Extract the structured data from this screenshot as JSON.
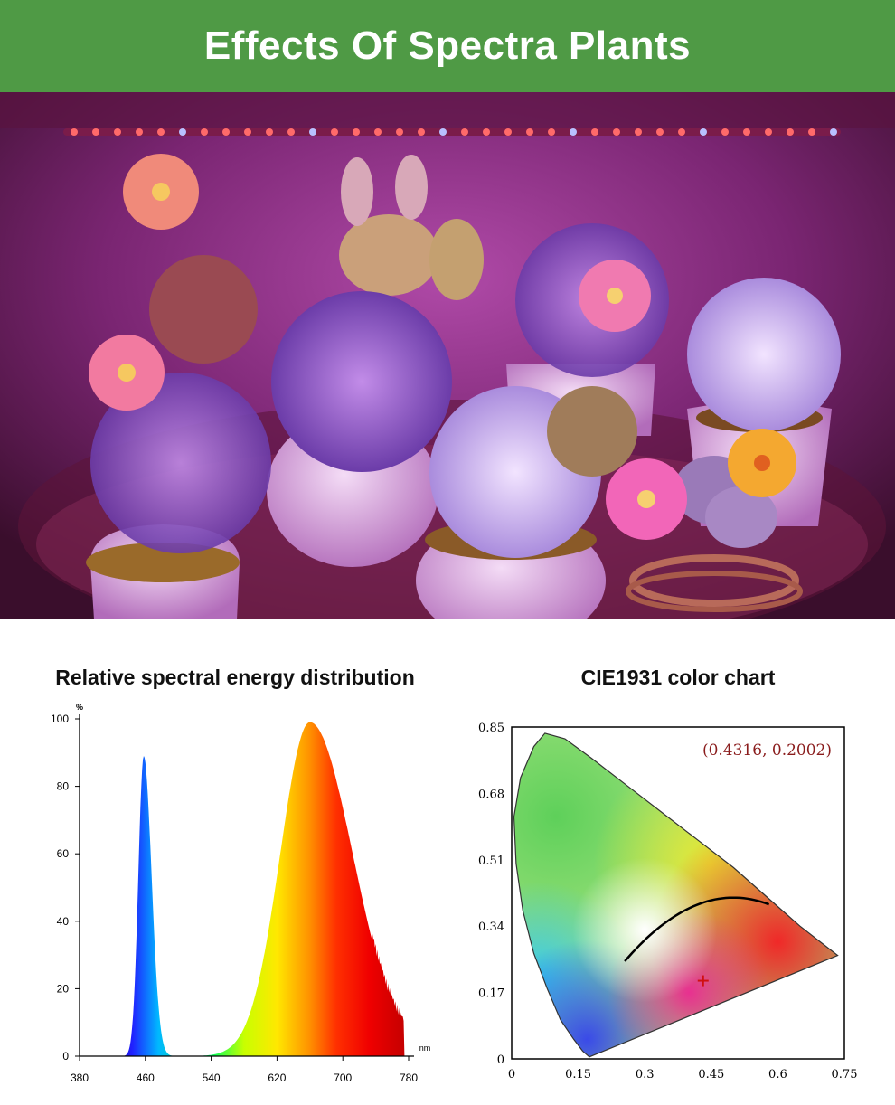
{
  "banner": {
    "title": "Effects Of Spectra Plants"
  },
  "colors": {
    "banner_bg": "#4f9a45",
    "banner_text": "#ffffff"
  },
  "photo": {
    "icon": "plant-photo"
  },
  "chart_data": [
    {
      "type": "area",
      "title": "Relative spectral energy distribution",
      "ylabel": "%",
      "xlabel": "nm",
      "xlim": [
        380,
        780
      ],
      "ylim": [
        0,
        100
      ],
      "x_ticks": [
        "380",
        "460",
        "540",
        "620",
        "700",
        "780"
      ],
      "y_ticks": [
        "0",
        "20",
        "40",
        "60",
        "80",
        "100"
      ],
      "grid": false,
      "series": [
        {
          "peak_nm": 458,
          "peak_value": 89
        },
        {
          "peak_nm": 660,
          "peak_value": 99
        }
      ]
    },
    {
      "type": "scatter",
      "title": "CIE1931 color chart",
      "xlim": [
        0,
        0.75
      ],
      "ylim": [
        0,
        0.85
      ],
      "x_ticks": [
        "0",
        "0.15",
        "0.3",
        "0.45",
        "0.6",
        "0.75"
      ],
      "y_ticks": [
        "0",
        "0.17",
        "0.34",
        "0.51",
        "0.68",
        "0.85"
      ],
      "annotation": "(0.4316, 0.2002)",
      "point": {
        "x": 0.4316,
        "y": 0.2002
      },
      "grid": false
    }
  ]
}
